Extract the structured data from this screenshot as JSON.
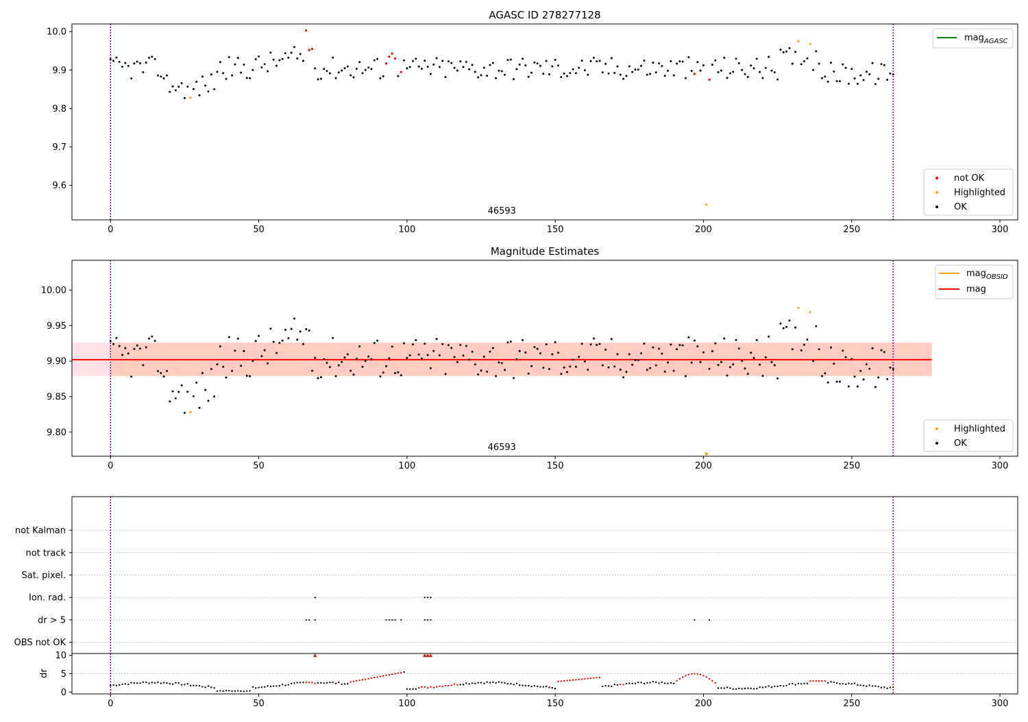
{
  "colors": {
    "ok": "#000000",
    "not_ok": "#ff0000",
    "highlighted": "#ffa500",
    "agasc_line": "#008000",
    "obsid_line": "#ffa500",
    "mag_line": "#ff0000",
    "vline": "#800080",
    "band_outer": "#ffc0cb",
    "band_inner": "#ffa07a"
  },
  "chart_data": [
    {
      "type": "scatter",
      "title": "AGASC ID 278277128",
      "xlim": [
        -13,
        306
      ],
      "ylim": [
        9.51,
        10.02
      ],
      "xticks": [
        0,
        50,
        100,
        150,
        200,
        250,
        300
      ],
      "yticks": [
        9.6,
        9.7,
        9.8,
        9.9,
        10.0
      ],
      "ytick_labels": [
        "9.6",
        "9.7",
        "9.8",
        "9.9",
        "10.0"
      ],
      "vlines": [
        0,
        264
      ],
      "annotation": {
        "text": "46593",
        "x": 132
      },
      "legend_top": [
        {
          "label": "mag",
          "sub": "AGASC",
          "kind": "line",
          "color_key": "agasc_line"
        }
      ],
      "legend_bottom": [
        {
          "label": "not OK",
          "color_key": "not_ok"
        },
        {
          "label": "Highlighted",
          "color_key": "highlighted"
        },
        {
          "label": "OK",
          "color_key": "ok"
        }
      ],
      "not_ok_points": [
        [
          66,
          10.003
        ],
        [
          67,
          9.952
        ],
        [
          68,
          9.955
        ],
        [
          93,
          9.917
        ],
        [
          94,
          9.935
        ],
        [
          95,
          9.943
        ],
        [
          96,
          9.93
        ],
        [
          98,
          9.895
        ],
        [
          197,
          9.89
        ],
        [
          202,
          9.875
        ]
      ],
      "highlighted_points": [
        [
          27,
          9.828
        ],
        [
          201,
          9.55
        ],
        [
          232,
          9.975
        ],
        [
          236,
          9.968
        ]
      ]
    },
    {
      "type": "scatter",
      "title": "Magnitude Estimates",
      "xlim": [
        -13,
        306
      ],
      "ylim": [
        9.766,
        10.042
      ],
      "xticks": [
        0,
        50,
        100,
        150,
        200,
        250,
        300
      ],
      "yticks": [
        9.8,
        9.85,
        9.9,
        9.95,
        10.0
      ],
      "ytick_labels": [
        "9.80",
        "9.85",
        "9.90",
        "9.95",
        "10.00"
      ],
      "vlines": [
        0,
        264
      ],
      "annotation": {
        "text": "46593",
        "x": 132
      },
      "mag": 9.902,
      "band_inner": {
        "x_range": [
          0,
          277
        ],
        "y_range": [
          9.879,
          9.926
        ]
      },
      "band_outer": {
        "x_range": [
          -13,
          277
        ],
        "y_range": [
          9.879,
          9.926
        ]
      },
      "legend_top": [
        {
          "label": "mag",
          "sub": "OBSID",
          "kind": "line",
          "color_key": "obsid_line"
        },
        {
          "label": "mag",
          "sub": "",
          "kind": "line",
          "color_key": "mag_line"
        }
      ],
      "legend_bottom": [
        {
          "label": "Highlighted",
          "color_key": "highlighted"
        },
        {
          "label": "OK",
          "color_key": "ok"
        }
      ],
      "highlighted_points": [
        [
          27,
          9.828
        ],
        [
          201,
          9.768
        ],
        [
          232,
          9.975
        ],
        [
          236,
          9.969
        ]
      ]
    },
    {
      "type": "scatter",
      "title": "",
      "xlim": [
        -13,
        306
      ],
      "ylim": [
        -0.5,
        6.5
      ],
      "categories": [
        "OBS not OK",
        "dr > 5",
        "Ion. rad.",
        "Sat. pixel.",
        "not track",
        "not Kalman"
      ],
      "vlines": [
        0,
        264
      ],
      "flags": [
        {
          "category": "dr > 5",
          "x": [
            66,
            67,
            69,
            93,
            94,
            95,
            96,
            98,
            106,
            107,
            108,
            197,
            202
          ]
        },
        {
          "category": "Ion. rad.",
          "x": [
            69,
            106,
            107,
            108
          ]
        }
      ]
    },
    {
      "type": "scatter",
      "title": "",
      "ylabel": "dr",
      "xlim": [
        -13,
        306
      ],
      "ylim": [
        -0.5,
        10.5
      ],
      "xticks": [
        0,
        50,
        100,
        150,
        200,
        250,
        300
      ],
      "yticks": [
        0,
        5,
        10
      ],
      "ytick_labels": [
        "0",
        "5",
        "10"
      ],
      "vlines": [
        0,
        264
      ],
      "threshold": 5
    }
  ]
}
